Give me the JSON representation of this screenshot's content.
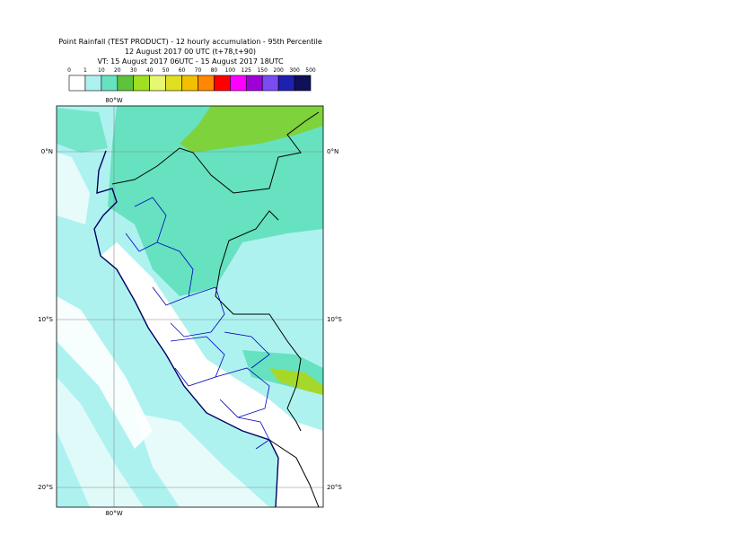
{
  "header": {
    "title": "Point Rainfall (TEST PRODUCT) - 12 hourly accumulation - 95th Percentile",
    "run": "12 August 2017 00 UTC (t+78,t+90)",
    "valid": "VT: 15 August 2017 06UTC - 15 August 2017 18UTC"
  },
  "legend": {
    "labels": [
      "0",
      "1",
      "10",
      "20",
      "30",
      "40",
      "50",
      "60",
      "70",
      "80",
      "100",
      "125",
      "150",
      "200",
      "300",
      "500"
    ],
    "colors": [
      "#ffffff",
      "#aef2f0",
      "#66e2c0",
      "#5ec23c",
      "#a0e020",
      "#e6f870",
      "#e0e020",
      "#f2c000",
      "#ff8800",
      "#ff0000",
      "#ff00ff",
      "#a000d8",
      "#7a4cf2",
      "#2020b0",
      "#101058"
    ]
  },
  "map": {
    "lon_labels": [
      "80°W"
    ],
    "lat_labels": [
      "0°N",
      "10°S",
      "20°S"
    ]
  }
}
